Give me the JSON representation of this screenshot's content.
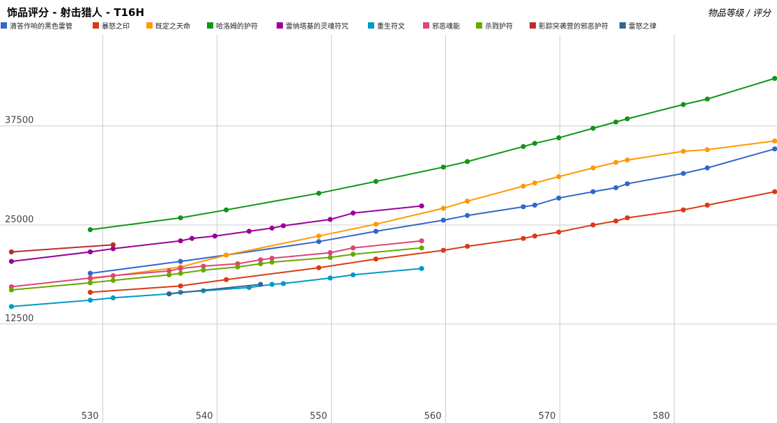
{
  "chart_data": {
    "type": "line",
    "title": "饰品评分 - 射击猎人 - T16H",
    "corner_label": "物品等级 / 评分",
    "xlim": [
      521,
      589
    ],
    "ylim": [
      0,
      49000
    ],
    "x_ticks": [
      530,
      540,
      550,
      560,
      570,
      580
    ],
    "y_ticks": [
      12500,
      25000,
      37500
    ],
    "legend_position": "top",
    "grid": true,
    "series": [
      {
        "name": "滴答作响的黑色雷管",
        "color": "#3366cc",
        "points": [
          [
            528.9,
            18900
          ],
          [
            536.8,
            20400
          ],
          [
            540.8,
            21200
          ],
          [
            548.9,
            22900
          ],
          [
            553.9,
            24200
          ],
          [
            559.8,
            25600
          ],
          [
            561.9,
            26200
          ],
          [
            566.8,
            27300
          ],
          [
            567.8,
            27500
          ],
          [
            569.9,
            28400
          ],
          [
            572.9,
            29200
          ],
          [
            574.9,
            29700
          ],
          [
            575.9,
            30200
          ],
          [
            580.8,
            31500
          ],
          [
            582.9,
            32200
          ],
          [
            588.8,
            34600
          ]
        ]
      },
      {
        "name": "暴怒之印",
        "color": "#dc3912",
        "points": [
          [
            528.9,
            16500
          ],
          [
            536.8,
            17300
          ],
          [
            540.8,
            18100
          ],
          [
            548.9,
            19600
          ],
          [
            553.9,
            20700
          ],
          [
            559.8,
            21800
          ],
          [
            561.9,
            22300
          ],
          [
            566.8,
            23300
          ],
          [
            567.8,
            23600
          ],
          [
            569.9,
            24100
          ],
          [
            572.9,
            25000
          ],
          [
            574.9,
            25500
          ],
          [
            575.9,
            25900
          ],
          [
            580.8,
            26900
          ],
          [
            582.9,
            27500
          ],
          [
            588.8,
            29200
          ]
        ]
      },
      {
        "name": "既定之天命",
        "color": "#ff9900",
        "points": [
          [
            528.9,
            18200
          ],
          [
            536.8,
            19700
          ],
          [
            540.8,
            21200
          ],
          [
            548.9,
            23600
          ],
          [
            553.9,
            25100
          ],
          [
            559.8,
            27100
          ],
          [
            561.9,
            28000
          ],
          [
            566.8,
            29900
          ],
          [
            567.8,
            30300
          ],
          [
            569.9,
            31100
          ],
          [
            572.9,
            32200
          ],
          [
            574.9,
            32900
          ],
          [
            575.9,
            33200
          ],
          [
            580.8,
            34300
          ],
          [
            582.9,
            34500
          ],
          [
            588.8,
            35600
          ]
        ]
      },
      {
        "name": "哈洛姆的护符",
        "color": "#109618",
        "points": [
          [
            528.9,
            24400
          ],
          [
            536.8,
            25900
          ],
          [
            540.8,
            26900
          ],
          [
            548.9,
            29000
          ],
          [
            553.9,
            30500
          ],
          [
            559.8,
            32300
          ],
          [
            561.9,
            33000
          ],
          [
            566.8,
            34900
          ],
          [
            567.8,
            35300
          ],
          [
            569.9,
            36000
          ],
          [
            572.9,
            37200
          ],
          [
            574.9,
            38000
          ],
          [
            575.9,
            38400
          ],
          [
            580.8,
            40200
          ],
          [
            582.9,
            40900
          ],
          [
            588.8,
            43500
          ]
        ]
      },
      {
        "name": "雷纳塔基的灵魂符咒",
        "color": "#990099",
        "points": [
          [
            522.0,
            20400
          ],
          [
            528.9,
            21600
          ],
          [
            530.9,
            22000
          ],
          [
            536.8,
            23000
          ],
          [
            537.8,
            23300
          ],
          [
            539.8,
            23600
          ],
          [
            542.8,
            24200
          ],
          [
            544.8,
            24600
          ],
          [
            545.8,
            24900
          ],
          [
            549.9,
            25700
          ],
          [
            551.9,
            26500
          ],
          [
            557.9,
            27400
          ]
        ]
      },
      {
        "name": "重生符文",
        "color": "#0099c6",
        "points": [
          [
            522.0,
            14700
          ],
          [
            528.9,
            15500
          ],
          [
            530.9,
            15800
          ],
          [
            535.8,
            16300
          ],
          [
            536.8,
            16500
          ],
          [
            538.8,
            16700
          ],
          [
            542.8,
            17100
          ],
          [
            544.8,
            17500
          ],
          [
            545.8,
            17600
          ],
          [
            549.9,
            18300
          ],
          [
            551.9,
            18700
          ],
          [
            557.9,
            19500
          ]
        ]
      },
      {
        "name": "邪恶魂能",
        "color": "#dd4477",
        "points": [
          [
            522.0,
            17200
          ],
          [
            528.9,
            18300
          ],
          [
            530.9,
            18600
          ],
          [
            535.8,
            19200
          ],
          [
            536.8,
            19500
          ],
          [
            538.8,
            19800
          ],
          [
            541.8,
            20100
          ],
          [
            543.8,
            20600
          ],
          [
            544.8,
            20800
          ],
          [
            549.9,
            21500
          ],
          [
            551.9,
            22100
          ],
          [
            557.9,
            23000
          ]
        ]
      },
      {
        "name": "杀戮护符",
        "color": "#66aa00",
        "points": [
          [
            522.0,
            16800
          ],
          [
            528.9,
            17700
          ],
          [
            530.9,
            18000
          ],
          [
            535.8,
            18700
          ],
          [
            536.8,
            18900
          ],
          [
            538.8,
            19300
          ],
          [
            541.8,
            19700
          ],
          [
            543.8,
            20100
          ],
          [
            544.8,
            20300
          ],
          [
            549.9,
            20900
          ],
          [
            551.9,
            21300
          ],
          [
            557.9,
            22100
          ]
        ]
      },
      {
        "name": "影踪突袭营的邪恶护符",
        "color": "#b82e2e",
        "points": [
          [
            522.0,
            21600
          ],
          [
            530.9,
            22500
          ]
        ]
      },
      {
        "name": "雷怒之律",
        "color": "#316395",
        "points": [
          [
            535.8,
            16300
          ],
          [
            543.8,
            17500
          ]
        ]
      }
    ]
  }
}
